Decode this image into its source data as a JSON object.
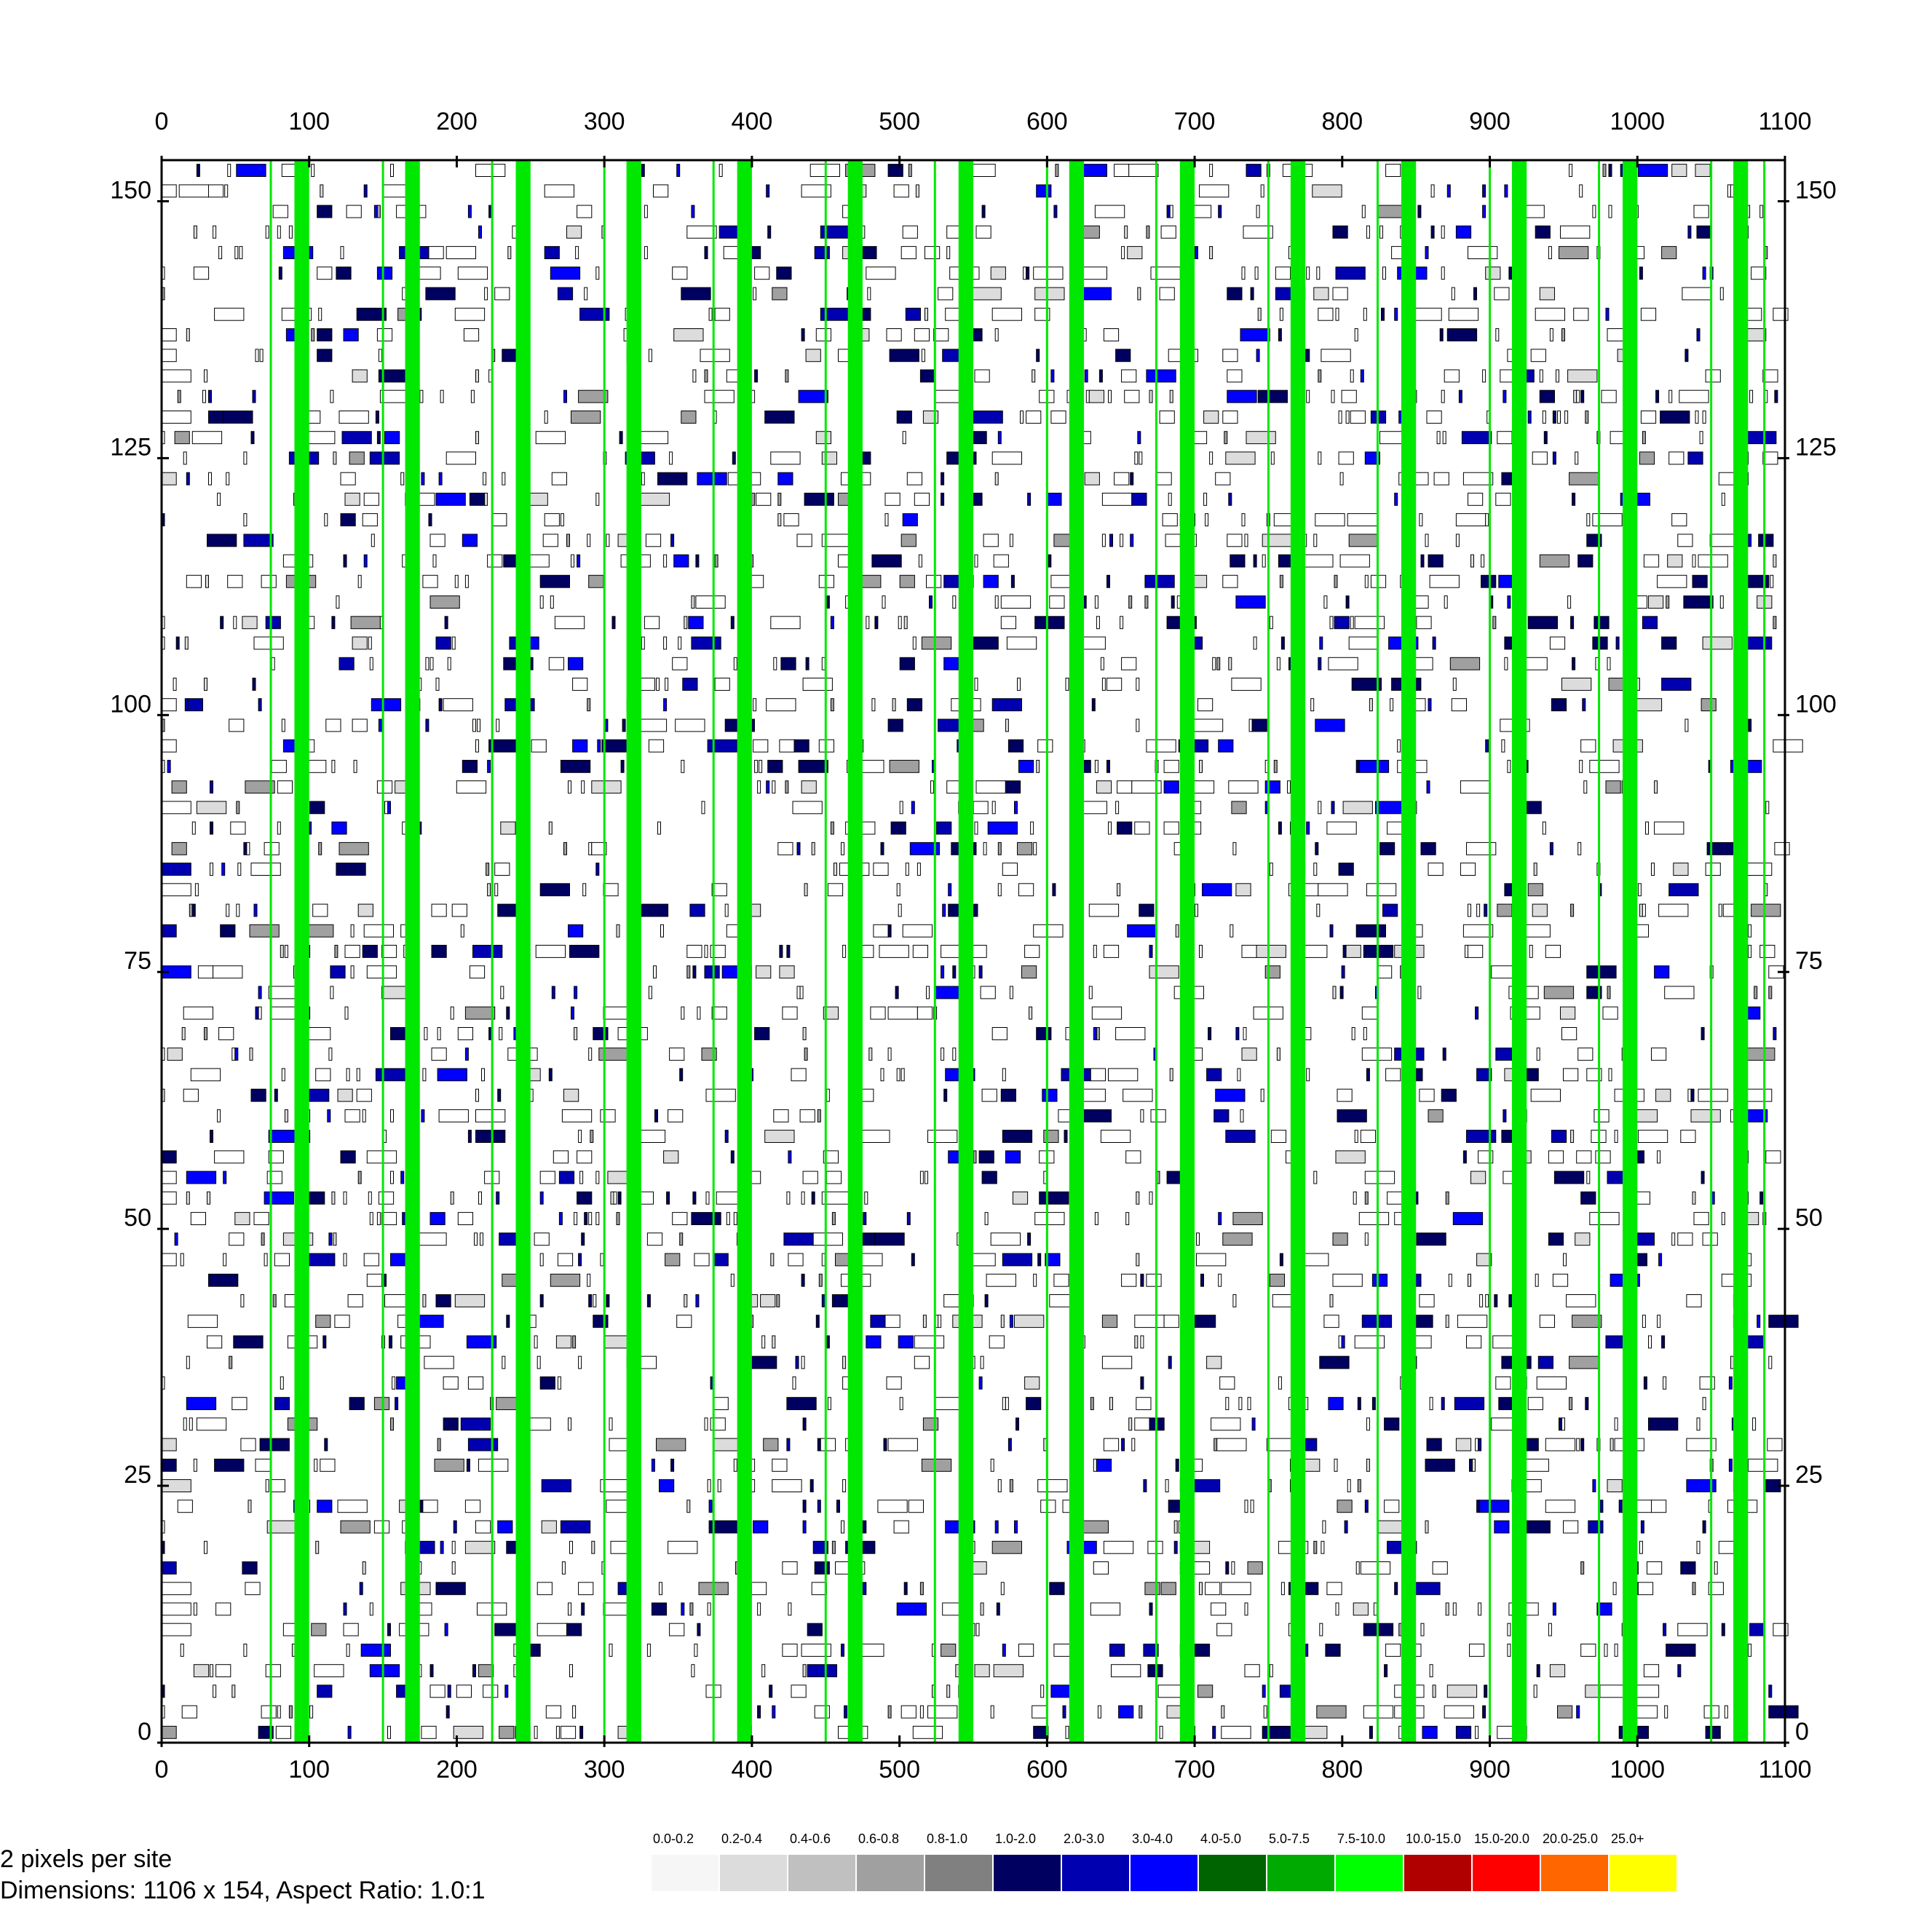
{
  "chart_data": {
    "type": "heatmap",
    "title": "",
    "xlabel": "",
    "ylabel": "",
    "xlim": [
      0,
      1100
    ],
    "ylim": [
      0,
      154
    ],
    "x_ticks": [
      0,
      100,
      200,
      300,
      400,
      500,
      600,
      700,
      800,
      900,
      1000,
      1100
    ],
    "y_ticks": [
      0,
      25,
      50,
      75,
      100,
      125,
      150
    ],
    "x_tick_labels": [
      "0",
      "100",
      "200",
      "300",
      "400",
      "500",
      "600",
      "700",
      "800",
      "900",
      "1000",
      "1100"
    ],
    "y_tick_labels": [
      "0",
      "25",
      "50",
      "75",
      "100",
      "125",
      "150"
    ],
    "green_bands": [
      {
        "x": 90,
        "width": 10
      },
      {
        "x": 165,
        "width": 10
      },
      {
        "x": 240,
        "width": 10
      },
      {
        "x": 315,
        "width": 10
      },
      {
        "x": 390,
        "width": 10
      },
      {
        "x": 465,
        "width": 10
      },
      {
        "x": 540,
        "width": 10
      },
      {
        "x": 615,
        "width": 10
      },
      {
        "x": 690,
        "width": 10
      },
      {
        "x": 765,
        "width": 10
      },
      {
        "x": 840,
        "width": 10
      },
      {
        "x": 915,
        "width": 10
      },
      {
        "x": 990,
        "width": 10
      },
      {
        "x": 1065,
        "width": 10
      }
    ],
    "thin_lines": [
      0,
      74,
      150,
      224,
      300,
      374,
      450,
      524,
      600,
      674,
      750,
      824,
      900,
      974,
      1050,
      1086
    ],
    "legend": [
      {
        "label": "0.0-0.2",
        "color": "#f6f6f6"
      },
      {
        "label": "0.2-0.4",
        "color": "#dcdcdc"
      },
      {
        "label": "0.4-0.6",
        "color": "#c0c0c0"
      },
      {
        "label": "0.6-0.8",
        "color": "#a0a0a0"
      },
      {
        "label": "0.8-1.0",
        "color": "#808080"
      },
      {
        "label": "1.0-2.0",
        "color": "#000060"
      },
      {
        "label": "2.0-3.0",
        "color": "#0000b0"
      },
      {
        "label": "3.0-4.0",
        "color": "#0000ff"
      },
      {
        "label": "4.0-5.0",
        "color": "#006400"
      },
      {
        "label": "5.0-7.5",
        "color": "#00aa00"
      },
      {
        "label": "7.5-10.0",
        "color": "#00ff00"
      },
      {
        "label": "10.0-15.0",
        "color": "#b00000"
      },
      {
        "label": "15.0-20.0",
        "color": "#ff0000"
      },
      {
        "label": "20.0-25.0",
        "color": "#ff6600"
      },
      {
        "label": "25.0+",
        "color": "#ffff00"
      }
    ]
  },
  "info": {
    "pixels_per_site": "2  pixels  per  site",
    "dimensions": "Dimensions:  1106  x  154,  Aspect  Ratio:  1.0:1"
  }
}
